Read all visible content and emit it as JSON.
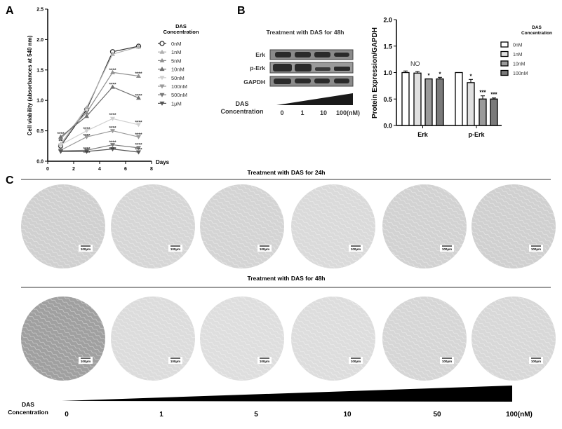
{
  "panels": {
    "a": "A",
    "b": "B",
    "c": "C"
  },
  "chart_data": [
    {
      "type": "line",
      "panel": "A",
      "xlabel": "Days",
      "ylabel": "Cell viability (absorbances at 540 nm)",
      "xlim": [
        0,
        8
      ],
      "ylim": [
        0,
        2.5
      ],
      "xticks": [
        "0",
        "2",
        "4",
        "6",
        "8"
      ],
      "yticks": [
        "0.0",
        "0.5",
        "1.0",
        "1.5",
        "2.0",
        "2.5"
      ],
      "legend_title": "DAS Concentration",
      "x": [
        1,
        3,
        5,
        7
      ],
      "series": [
        {
          "name": "0nM",
          "marker": "circle-open",
          "color": "#333333",
          "values": [
            0.25,
            0.85,
            1.8,
            1.89
          ]
        },
        {
          "name": "1nM",
          "marker": "triangle-up",
          "color": "#b0b0b0",
          "values": [
            0.28,
            0.88,
            1.76,
            1.88
          ]
        },
        {
          "name": "5nM",
          "marker": "triangle-up",
          "color": "#909090",
          "values": [
            0.37,
            0.8,
            1.46,
            1.4
          ]
        },
        {
          "name": "10nM",
          "marker": "triangle-up",
          "color": "#707070",
          "values": [
            0.4,
            0.74,
            1.22,
            1.04
          ]
        },
        {
          "name": "50nM",
          "marker": "triangle-down",
          "color": "#d0d0d0",
          "values": [
            0.27,
            0.5,
            0.7,
            0.6
          ]
        },
        {
          "name": "100nM",
          "marker": "triangle-down",
          "color": "#9a9a9a",
          "values": [
            0.18,
            0.4,
            0.5,
            0.4
          ]
        },
        {
          "name": "500nM",
          "marker": "triangle-down",
          "color": "#7a7a7a",
          "values": [
            0.17,
            0.18,
            0.27,
            0.22
          ]
        },
        {
          "name": "1μM",
          "marker": "triangle-down",
          "color": "#555555",
          "values": [
            0.16,
            0.16,
            0.2,
            0.15
          ]
        }
      ],
      "annotations": [
        {
          "text": "****",
          "x": 1,
          "y": 0.45
        },
        {
          "text": "**",
          "x": 1,
          "y": 0.33
        },
        {
          "text": "****",
          "x": 3,
          "y": 0.53
        },
        {
          "text": "****",
          "x": 3,
          "y": 0.42
        },
        {
          "text": "****",
          "x": 3,
          "y": 0.2
        },
        {
          "text": "****",
          "x": 3,
          "y": 0.14
        },
        {
          "text": "****",
          "x": 5,
          "y": 1.5
        },
        {
          "text": "****",
          "x": 5,
          "y": 1.26
        },
        {
          "text": "****",
          "x": 5,
          "y": 0.76
        },
        {
          "text": "****",
          "x": 5,
          "y": 0.55
        },
        {
          "text": "****",
          "x": 5,
          "y": 0.31
        },
        {
          "text": "****",
          "x": 5,
          "y": 0.2
        },
        {
          "text": "****",
          "x": 7,
          "y": 1.44
        },
        {
          "text": "****",
          "x": 7,
          "y": 1.08
        },
        {
          "text": "****",
          "x": 7,
          "y": 0.64
        },
        {
          "text": "****",
          "x": 7,
          "y": 0.44
        },
        {
          "text": "****",
          "x": 7,
          "y": 0.27
        },
        {
          "text": "****",
          "x": 7,
          "y": 0.19
        }
      ]
    },
    {
      "type": "bar",
      "panel": "B",
      "ylabel": "Protein Expression/GAPDH",
      "ylim": [
        0,
        2.0
      ],
      "yticks": [
        "0.0",
        "0.5",
        "1.0",
        "1.5",
        "2.0"
      ],
      "categories": [
        "Erk",
        "p-Erk"
      ],
      "legend_title": "DAS Concentration",
      "series": [
        {
          "name": "0nM",
          "color": "#ffffff",
          "values": [
            1.0,
            1.0
          ],
          "errors": [
            0.03,
            0.0
          ],
          "sig": [
            "",
            ""
          ]
        },
        {
          "name": "1nM",
          "color": "#e0e0e0",
          "values": [
            0.99,
            0.81
          ],
          "errors": [
            0.03,
            0.06
          ],
          "sig": [
            "",
            "*"
          ]
        },
        {
          "name": "10nM",
          "color": "#9a9a9a",
          "values": [
            0.88,
            0.5
          ],
          "errors": [
            0.0,
            0.06
          ],
          "sig": [
            "*",
            "***"
          ]
        },
        {
          "name": "100nM",
          "color": "#7a7a7a",
          "values": [
            0.88,
            0.5
          ],
          "errors": [
            0.03,
            0.02
          ],
          "sig": [
            "*",
            "***"
          ]
        }
      ],
      "annotation": "NO"
    }
  ],
  "blot": {
    "title": "Treatment with DAS for 48h",
    "rows": [
      "Erk",
      "p-Erk",
      "GAPDH"
    ],
    "conc_label_1": "DAS",
    "conc_label_2": "Concentration",
    "lanes": [
      "0",
      "1",
      "10",
      "100(nM)"
    ]
  },
  "micrographs": {
    "row1_title": "Treatment with DAS for 24h",
    "row2_title": "Treatment with DAS for 48h",
    "scale_bar": "100μm",
    "conc_label_1": "DAS",
    "conc_label_2": "Concentration",
    "concentrations": [
      "0",
      "1",
      "5",
      "10",
      "50",
      "100(nM)"
    ]
  }
}
